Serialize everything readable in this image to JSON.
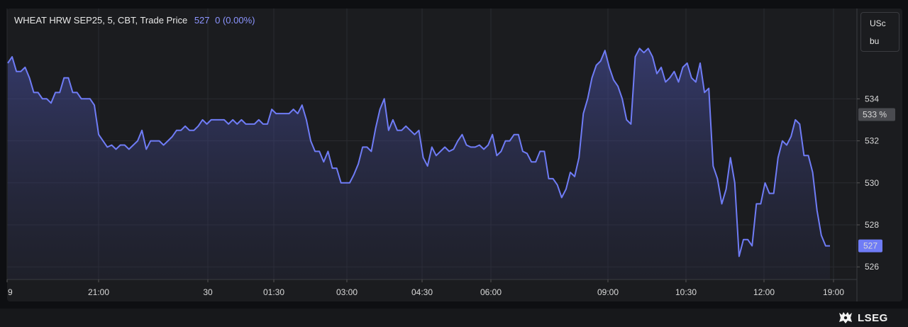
{
  "legend": {
    "instrument": "WHEAT HRW SEP25, 5, CBT, Trade Price",
    "price": "527",
    "change": "0 (0.00%)"
  },
  "units": {
    "line1": "USc",
    "line2": "bu"
  },
  "badges": {
    "prev_close": "533 %",
    "last": "527"
  },
  "logo": {
    "text": "LSEG"
  },
  "colors": {
    "line": "#6f7cf6",
    "background": "#1b1c1f",
    "last_badge": "#6f7cf6",
    "prev_badge": "#4a4b50"
  },
  "chart_data": {
    "type": "area",
    "series": [
      {
        "values": [
          535.7,
          536.0,
          535.3,
          535.3,
          535.5,
          535.0,
          534.3,
          534.3,
          534.0,
          534.0,
          533.8,
          534.3,
          534.3,
          535.0,
          535.0,
          534.3,
          534.3,
          534.0,
          534.0,
          534.0,
          533.7,
          532.3,
          532.0,
          531.7,
          531.8,
          531.6,
          531.8,
          531.8,
          531.6,
          531.8,
          532.0,
          532.5,
          531.6,
          532.0,
          532.0,
          532.0,
          531.8,
          532.0,
          532.2,
          532.5,
          532.5,
          532.7,
          532.5,
          532.5,
          532.7,
          533.0,
          532.8,
          533.0,
          533.0,
          533.0,
          533.0,
          532.8,
          533.0,
          532.8,
          533.0,
          532.8,
          532.8,
          532.8,
          533.0,
          532.8,
          532.8,
          533.5,
          533.3,
          533.3,
          533.3,
          533.3,
          533.5,
          533.3,
          533.7,
          533.0,
          532.0,
          531.5,
          531.5,
          531.0,
          531.5,
          530.7,
          530.7,
          530.0,
          530.0,
          530.0,
          530.4,
          530.9,
          531.7,
          531.7,
          531.5,
          532.6,
          533.5,
          534.0,
          532.5,
          533.0,
          532.5,
          532.5,
          532.7,
          532.5,
          532.3,
          532.5,
          531.2,
          530.8,
          531.7,
          531.3,
          531.5,
          531.7,
          531.5,
          531.6,
          532.0,
          532.3,
          531.8,
          531.7,
          531.7,
          531.8,
          531.6,
          531.8,
          532.3,
          531.3,
          531.5,
          532.0,
          532.0,
          532.3,
          532.3,
          531.5,
          531.4,
          531.0,
          531.0,
          531.5,
          531.5,
          530.2,
          530.2,
          529.9,
          529.3,
          529.7,
          530.5,
          530.3,
          531.2,
          533.3,
          534.0,
          535.0,
          535.6,
          535.8,
          536.3,
          535.5,
          534.9,
          534.6,
          534.0,
          533.0,
          532.8,
          536.0,
          536.4,
          536.2,
          536.4,
          536.0,
          535.2,
          535.5,
          534.8,
          535.0,
          535.3,
          534.8,
          535.5,
          535.7,
          535.0,
          534.8,
          535.7,
          534.3,
          534.5,
          530.8,
          530.2,
          529.0,
          529.7,
          531.2,
          530.0,
          526.5,
          527.3,
          527.3,
          527.0,
          529.0,
          529.0,
          530.0,
          529.5,
          529.5,
          531.2,
          532.0,
          531.8,
          532.2,
          533.0,
          532.8,
          531.3,
          531.3,
          530.5,
          528.7,
          527.5,
          527.0,
          527.0
        ]
      }
    ],
    "x_tick_labels": [
      "9",
      "21:00",
      "30",
      "01:30",
      "03:00",
      "04:30",
      "06:00",
      "09:00",
      "10:30",
      "12:00",
      "19:00"
    ],
    "y_tick_labels": [
      "526",
      "528",
      "530",
      "532",
      "534"
    ],
    "ylim": [
      525.4,
      538.3
    ],
    "prev_close": 533.25,
    "last": 527,
    "grid": true
  }
}
